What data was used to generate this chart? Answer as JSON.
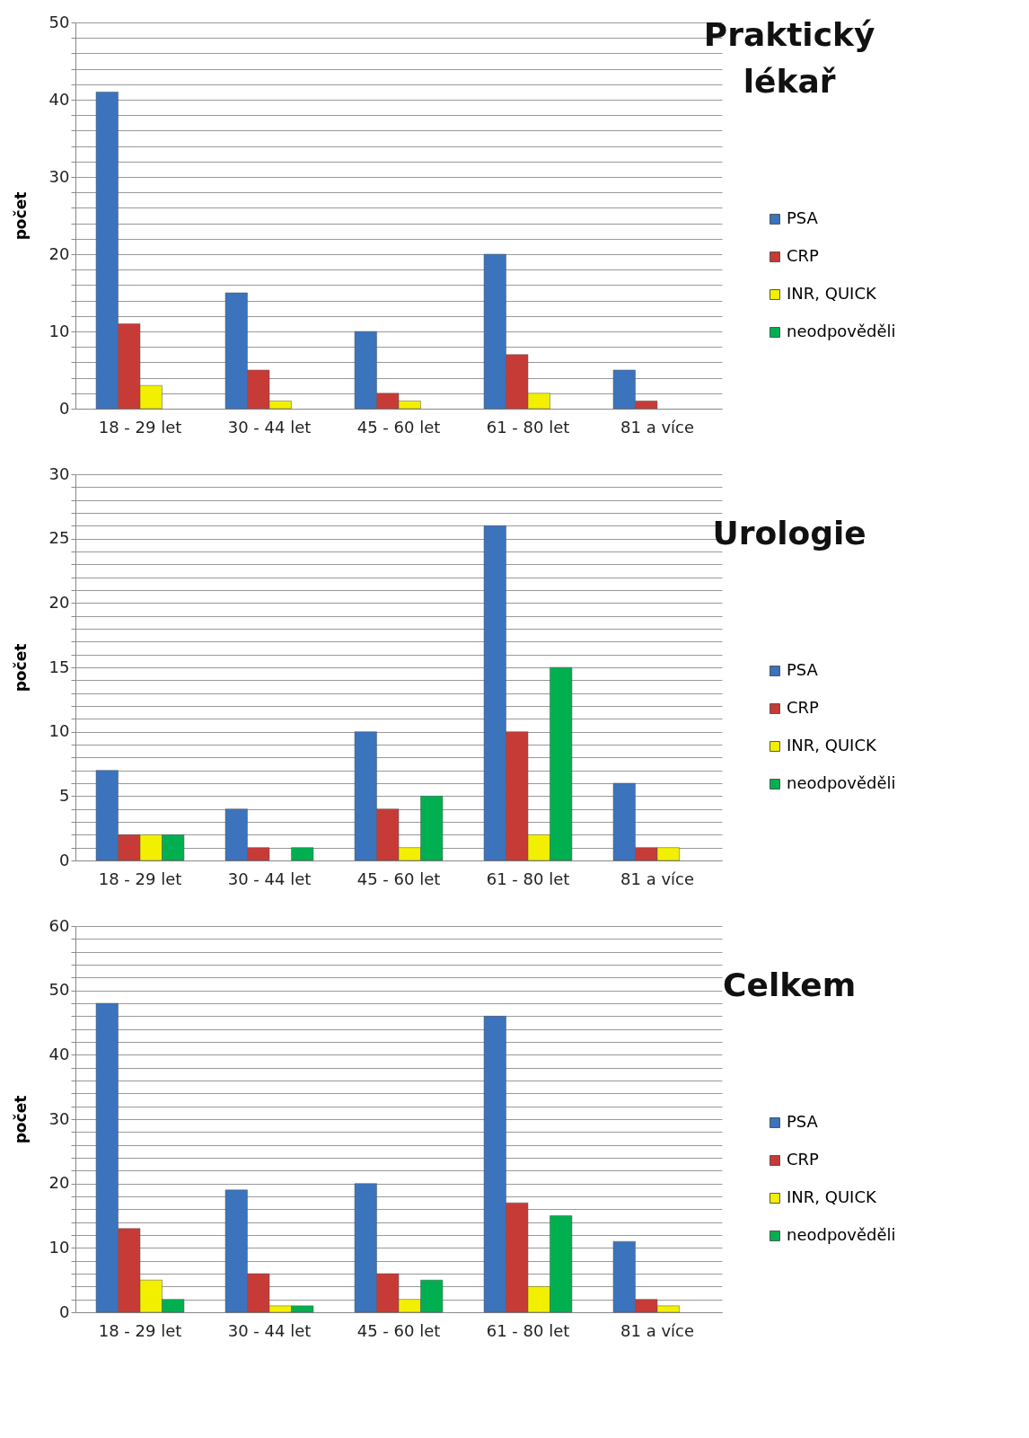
{
  "chart_data": [
    {
      "type": "bar",
      "title": "Praktický lékař",
      "ylabel": "počet",
      "categories": [
        "18 - 29 let",
        "30 - 44 let",
        "45 - 60 let",
        "61 - 80 let",
        "81 a více"
      ],
      "ylim": [
        0,
        50
      ],
      "yticks": [
        0,
        {
          "value": 2,
          "label": null
        },
        {
          "value": 4,
          "label": null
        },
        {
          "value": 6,
          "label": null
        },
        {
          "value": 8,
          "label": null
        },
        10,
        {
          "value": 12,
          "label": null
        },
        {
          "value": 14,
          "label": null
        },
        {
          "value": 16,
          "label": null
        },
        {
          "value": 18,
          "label": null
        },
        20,
        {
          "value": 22,
          "label": null
        },
        {
          "value": 24,
          "label": null
        },
        {
          "value": 26,
          "label": null
        },
        {
          "value": 28,
          "label": null
        },
        30,
        {
          "value": 32,
          "label": null
        },
        {
          "value": 34,
          "label": null
        },
        {
          "value": 36,
          "label": null
        },
        {
          "value": 38,
          "label": null
        },
        40,
        {
          "value": 42,
          "label": null
        },
        {
          "value": 44,
          "label": null
        },
        {
          "value": 46,
          "label": null
        },
        {
          "value": 48,
          "label": null
        },
        50
      ],
      "grid": "y",
      "legend": "right",
      "series": [
        {
          "name": "PSA",
          "color": "#3b73bd",
          "values": [
            41,
            15,
            10,
            20,
            5
          ]
        },
        {
          "name": "CRP",
          "color": "#c73b37",
          "values": [
            11,
            5,
            2,
            7,
            1
          ]
        },
        {
          "name": "INR, QUICK",
          "color": "#f2f000",
          "values": [
            3,
            1,
            1,
            2,
            null
          ]
        },
        {
          "name": "neodpověděli",
          "color": "#00b050",
          "values": [
            null,
            null,
            null,
            null,
            null
          ]
        }
      ]
    },
    {
      "type": "bar",
      "title": "Urologie",
      "ylabel": "počet",
      "categories": [
        "18 - 29 let",
        "30 - 44 let",
        "45 - 60 let",
        "61 - 80 let",
        "81 a více"
      ],
      "ylim": [
        0,
        30
      ],
      "yticks": [
        0,
        {
          "value": 1,
          "label": null
        },
        {
          "value": 2,
          "label": null
        },
        {
          "value": 3,
          "label": null
        },
        {
          "value": 4,
          "label": null
        },
        5,
        {
          "value": 6,
          "label": null
        },
        {
          "value": 7,
          "label": null
        },
        {
          "value": 8,
          "label": null
        },
        {
          "value": 9,
          "label": null
        },
        10,
        {
          "value": 11,
          "label": null
        },
        {
          "value": 12,
          "label": null
        },
        {
          "value": 13,
          "label": null
        },
        {
          "value": 14,
          "label": null
        },
        15,
        {
          "value": 16,
          "label": null
        },
        {
          "value": 17,
          "label": null
        },
        {
          "value": 18,
          "label": null
        },
        {
          "value": 19,
          "label": null
        },
        20,
        {
          "value": 21,
          "label": null
        },
        {
          "value": 22,
          "label": null
        },
        {
          "value": 23,
          "label": null
        },
        {
          "value": 24,
          "label": null
        },
        25,
        {
          "value": 26,
          "label": null
        },
        {
          "value": 27,
          "label": null
        },
        {
          "value": 28,
          "label": null
        },
        {
          "value": 29,
          "label": null
        },
        30
      ],
      "grid": "y",
      "legend": "right",
      "series": [
        {
          "name": "PSA",
          "color": "#3b73bd",
          "values": [
            7,
            4,
            10,
            26,
            6
          ]
        },
        {
          "name": "CRP",
          "color": "#c73b37",
          "values": [
            2,
            1,
            4,
            10,
            1
          ]
        },
        {
          "name": "INR, QUICK",
          "color": "#f2f000",
          "values": [
            2,
            null,
            1,
            2,
            1
          ]
        },
        {
          "name": "neodpověděli",
          "color": "#00b050",
          "values": [
            2,
            1,
            5,
            15,
            null
          ]
        }
      ]
    },
    {
      "type": "bar",
      "title": "Celkem",
      "ylabel": "počet",
      "categories": [
        "18 - 29 let",
        "30 - 44 let",
        "45 - 60 let",
        "61 - 80 let",
        "81 a více"
      ],
      "ylim": [
        0,
        60
      ],
      "yticks": [
        0,
        {
          "value": 2,
          "label": null
        },
        {
          "value": 4,
          "label": null
        },
        {
          "value": 6,
          "label": null
        },
        {
          "value": 8,
          "label": null
        },
        10,
        {
          "value": 12,
          "label": null
        },
        {
          "value": 14,
          "label": null
        },
        {
          "value": 16,
          "label": null
        },
        {
          "value": 18,
          "label": null
        },
        20,
        {
          "value": 22,
          "label": null
        },
        {
          "value": 24,
          "label": null
        },
        {
          "value": 26,
          "label": null
        },
        {
          "value": 28,
          "label": null
        },
        30,
        {
          "value": 32,
          "label": null
        },
        {
          "value": 34,
          "label": null
        },
        {
          "value": 36,
          "label": null
        },
        {
          "value": 38,
          "label": null
        },
        40,
        {
          "value": 42,
          "label": null
        },
        {
          "value": 44,
          "label": null
        },
        {
          "value": 46,
          "label": null
        },
        {
          "value": 48,
          "label": null
        },
        50,
        {
          "value": 52,
          "label": null
        },
        {
          "value": 54,
          "label": null
        },
        {
          "value": 56,
          "label": null
        },
        {
          "value": 58,
          "label": null
        },
        60
      ],
      "grid": "y",
      "legend": "right",
      "series": [
        {
          "name": "PSA",
          "color": "#3b73bd",
          "values": [
            48,
            19,
            20,
            46,
            11
          ]
        },
        {
          "name": "CRP",
          "color": "#c73b37",
          "values": [
            13,
            6,
            6,
            17,
            2
          ]
        },
        {
          "name": "INR, QUICK",
          "color": "#f2f000",
          "values": [
            5,
            1,
            2,
            4,
            1
          ]
        },
        {
          "name": "neodpověděli",
          "color": "#00b050",
          "values": [
            2,
            1,
            5,
            15,
            null
          ]
        }
      ]
    }
  ]
}
